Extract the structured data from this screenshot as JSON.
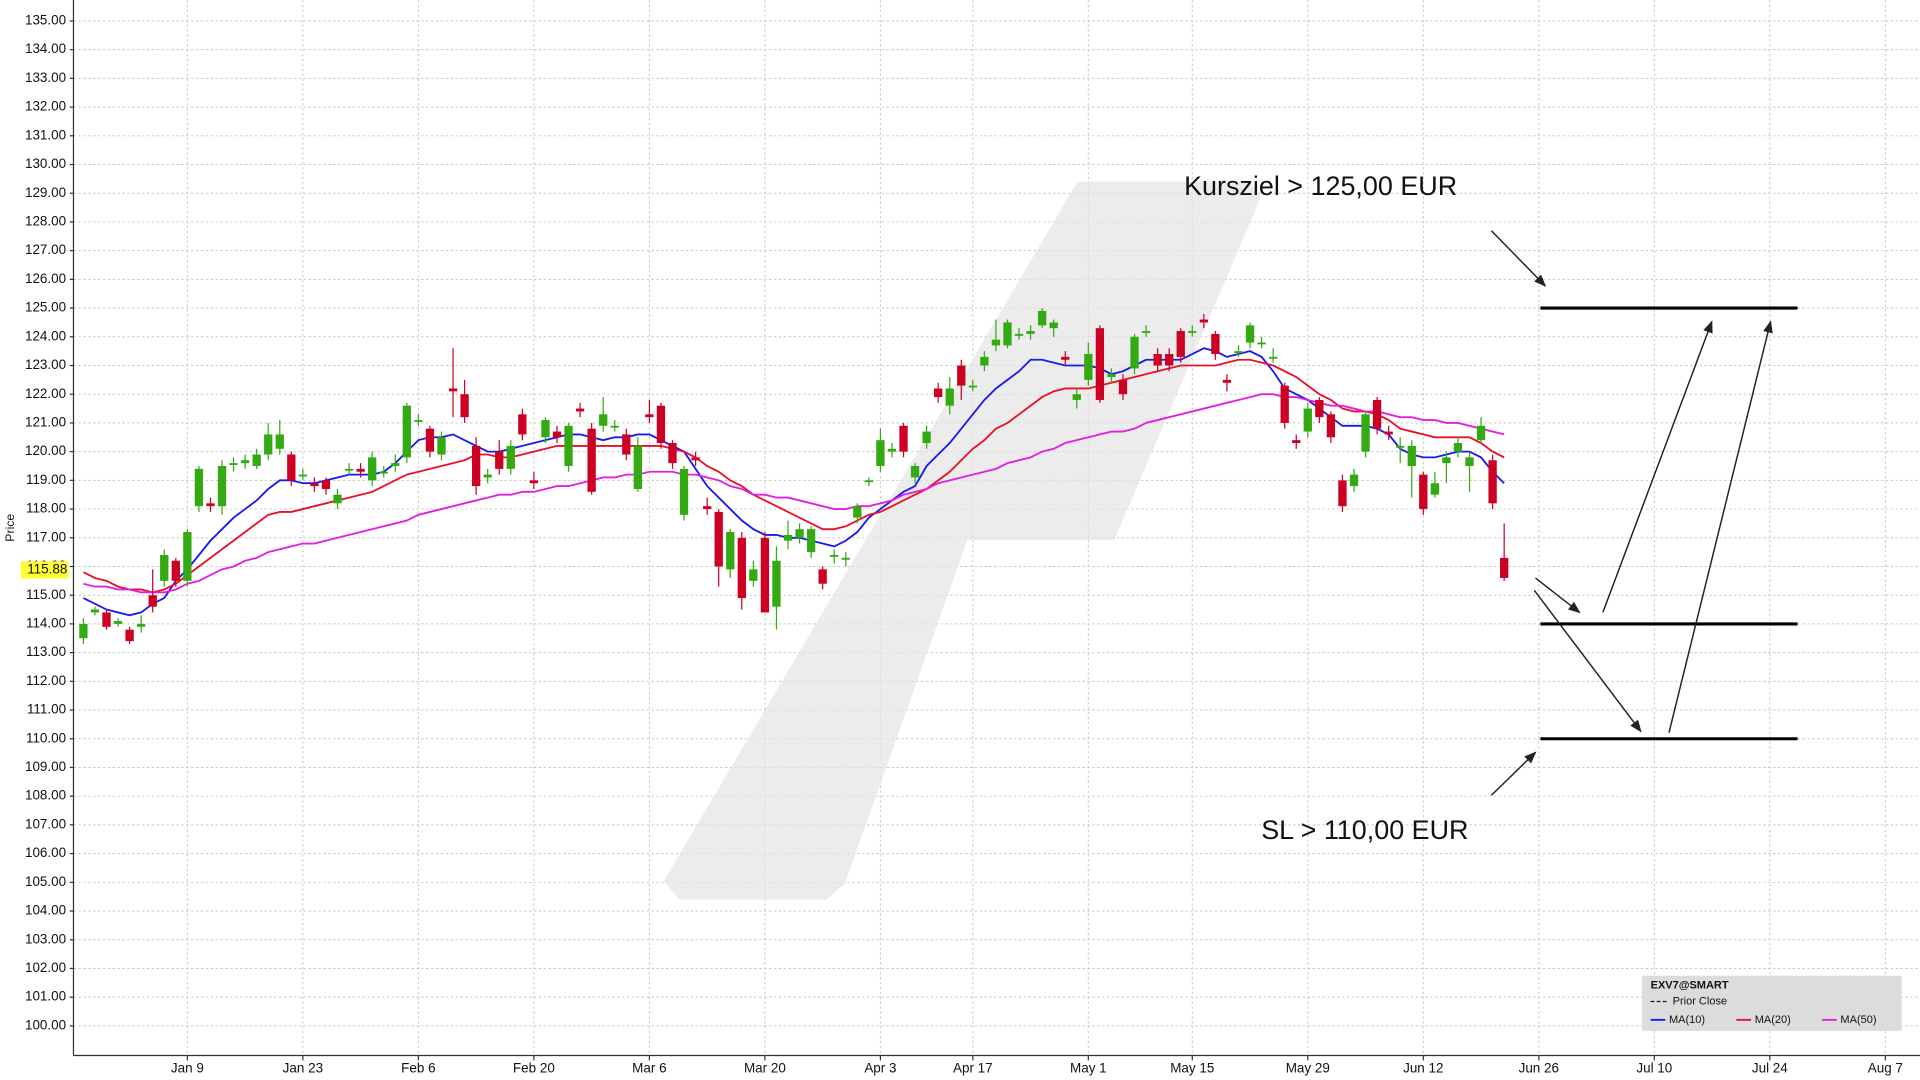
{
  "chart_data": {
    "type": "candlestick",
    "symbol": "EXV7@SMART",
    "y_label": "Price",
    "prior_close_label": "Prior Close",
    "last_price": 115.88,
    "up_color": "#33aa11",
    "down_color": "#cc0022",
    "open": [
      113.5,
      114.4,
      114.4,
      114.0,
      113.8,
      113.9,
      115.0,
      115.5,
      116.2,
      115.5,
      118.1,
      118.2,
      118.1,
      119.6,
      119.6,
      119.5,
      119.9,
      120.1,
      119.9,
      119.2,
      118.9,
      119.0,
      118.2,
      119.4,
      119.4,
      119.0,
      119.3,
      119.5,
      119.8,
      121.1,
      120.8,
      119.9,
      122.2,
      122.0,
      120.2,
      119.1,
      120.0,
      119.4,
      121.3,
      119.0,
      120.5,
      120.7,
      119.5,
      121.5,
      120.8,
      120.9,
      120.9,
      120.6,
      118.7,
      121.3,
      121.6,
      120.3,
      117.8,
      119.8,
      118.1,
      117.9,
      115.9,
      117.0,
      115.5,
      117.0,
      114.6,
      116.9,
      117.0,
      116.5,
      115.9,
      116.4,
      116.3,
      117.7,
      119.0,
      119.5,
      120.0,
      120.9,
      119.1,
      120.3,
      122.2,
      121.6,
      123.0,
      122.3,
      123.0,
      123.7,
      123.7,
      124.1,
      124.1,
      124.4,
      124.3,
      123.3,
      121.8,
      122.5,
      124.3,
      122.6,
      122.5,
      122.9,
      124.2,
      123.4,
      123.4,
      124.2,
      124.2,
      124.6,
      124.1,
      122.5,
      123.5,
      123.8,
      123.8,
      123.3,
      122.3,
      120.4,
      120.7,
      121.8,
      121.3,
      119.0,
      118.8,
      120.0,
      121.8,
      120.7,
      120.2,
      119.5,
      119.2,
      118.5,
      119.6,
      120.0,
      119.5,
      120.4,
      119.7,
      116.3
    ],
    "high": [
      114.2,
      114.6,
      114.5,
      114.2,
      113.9,
      114.3,
      115.9,
      116.6,
      116.3,
      117.3,
      119.5,
      118.4,
      119.7,
      119.8,
      119.9,
      120.1,
      121.0,
      121.1,
      120.0,
      119.4,
      119.1,
      119.1,
      118.7,
      119.6,
      119.6,
      120.0,
      119.5,
      119.9,
      121.7,
      121.3,
      120.9,
      120.7,
      123.6,
      122.5,
      120.5,
      119.4,
      120.4,
      120.4,
      121.5,
      119.3,
      121.2,
      120.9,
      121.0,
      121.7,
      121.0,
      121.9,
      121.1,
      120.8,
      120.5,
      121.8,
      121.7,
      120.4,
      119.5,
      120.0,
      118.4,
      118.0,
      117.3,
      117.2,
      116.2,
      117.2,
      116.7,
      117.6,
      117.5,
      117.4,
      116.0,
      116.6,
      116.5,
      118.2,
      119.1,
      120.8,
      120.3,
      121.0,
      119.6,
      120.9,
      122.4,
      122.6,
      123.2,
      122.5,
      123.5,
      124.6,
      124.6,
      124.3,
      124.4,
      125.0,
      124.6,
      123.5,
      122.2,
      123.8,
      124.4,
      122.9,
      122.7,
      124.1,
      124.4,
      123.6,
      123.6,
      124.3,
      124.4,
      124.8,
      124.2,
      122.7,
      123.7,
      124.5,
      124.0,
      123.6,
      122.4,
      120.6,
      121.7,
      121.9,
      121.4,
      119.2,
      119.4,
      121.4,
      121.9,
      120.9,
      120.5,
      120.4,
      119.3,
      119.3,
      120.0,
      120.5,
      120.0,
      121.2,
      119.9,
      117.5
    ],
    "low": [
      113.3,
      114.3,
      113.8,
      113.9,
      113.3,
      113.7,
      114.4,
      115.3,
      115.3,
      115.3,
      117.9,
      117.9,
      117.8,
      119.3,
      119.4,
      119.4,
      119.7,
      119.9,
      118.8,
      119.0,
      118.6,
      118.5,
      118.0,
      119.2,
      119.1,
      118.8,
      119.1,
      119.3,
      119.6,
      120.9,
      119.8,
      119.7,
      121.2,
      121.0,
      118.5,
      118.9,
      119.2,
      119.2,
      120.4,
      118.7,
      120.3,
      120.3,
      119.3,
      121.2,
      118.5,
      120.7,
      120.7,
      119.7,
      118.6,
      121.0,
      120.1,
      119.4,
      117.6,
      119.5,
      117.8,
      115.3,
      115.6,
      114.5,
      115.3,
      114.4,
      113.8,
      116.6,
      116.8,
      116.3,
      115.2,
      116.1,
      116.0,
      117.5,
      118.8,
      119.3,
      119.8,
      119.8,
      118.9,
      120.1,
      121.7,
      121.3,
      121.8,
      122.1,
      122.8,
      123.5,
      123.6,
      123.9,
      123.9,
      124.3,
      124.0,
      123.0,
      121.5,
      122.3,
      121.7,
      122.4,
      121.8,
      122.7,
      124.0,
      122.8,
      122.8,
      123.1,
      124.0,
      124.3,
      123.2,
      122.1,
      123.3,
      123.6,
      123.6,
      123.1,
      120.8,
      120.1,
      120.5,
      121.0,
      120.3,
      117.9,
      118.6,
      119.8,
      120.6,
      120.4,
      119.6,
      118.4,
      117.8,
      118.4,
      118.9,
      119.8,
      118.6,
      120.3,
      118.0,
      115.5
    ],
    "close": [
      114.0,
      114.5,
      113.9,
      114.1,
      113.4,
      114.0,
      114.6,
      116.4,
      115.5,
      117.2,
      119.4,
      118.1,
      119.5,
      119.6,
      119.7,
      119.9,
      120.6,
      120.6,
      119.0,
      119.2,
      118.8,
      118.7,
      118.5,
      119.4,
      119.3,
      119.8,
      119.3,
      119.6,
      121.6,
      121.1,
      120.0,
      120.5,
      122.1,
      121.2,
      118.8,
      119.2,
      119.4,
      120.2,
      120.6,
      118.9,
      121.1,
      120.5,
      120.9,
      121.4,
      118.6,
      121.3,
      120.9,
      119.9,
      120.2,
      121.2,
      120.3,
      119.6,
      119.4,
      119.7,
      118.0,
      116.0,
      117.2,
      114.9,
      115.9,
      114.4,
      116.2,
      117.1,
      117.3,
      117.3,
      115.4,
      116.4,
      116.3,
      118.1,
      119.0,
      120.4,
      120.1,
      120.0,
      119.5,
      120.7,
      121.9,
      122.2,
      122.3,
      122.3,
      123.3,
      123.9,
      124.5,
      124.1,
      124.2,
      124.9,
      124.5,
      123.2,
      122.0,
      123.4,
      121.8,
      122.7,
      122.0,
      124.0,
      124.2,
      123.0,
      123.0,
      123.3,
      124.2,
      124.5,
      123.4,
      122.4,
      123.5,
      124.4,
      123.8,
      123.3,
      121.0,
      120.3,
      121.5,
      121.2,
      120.5,
      118.1,
      119.2,
      121.3,
      120.8,
      120.6,
      120.2,
      120.2,
      118.0,
      118.9,
      119.8,
      120.3,
      119.8,
      120.9,
      118.2,
      115.6
    ],
    "series": [
      {
        "name": "MA(10)",
        "color": "#1a1aee",
        "values": [
          114.9,
          114.7,
          114.5,
          114.4,
          114.3,
          114.4,
          114.7,
          114.9,
          115.5,
          115.9,
          116.4,
          116.9,
          117.3,
          117.7,
          118.0,
          118.3,
          118.7,
          119.0,
          119.0,
          118.9,
          118.9,
          119.0,
          119.1,
          119.2,
          119.2,
          119.2,
          119.3,
          119.6,
          120.0,
          120.4,
          120.5,
          120.5,
          120.6,
          120.4,
          120.2,
          120.0,
          120.0,
          120.1,
          120.2,
          120.3,
          120.4,
          120.5,
          120.6,
          120.6,
          120.5,
          120.4,
          120.5,
          120.5,
          120.6,
          120.6,
          120.4,
          120.2,
          120.0,
          119.4,
          118.8,
          118.4,
          118.0,
          117.6,
          117.3,
          117.1,
          117.1,
          117.0,
          117.0,
          116.9,
          116.8,
          116.7,
          116.9,
          117.2,
          117.7,
          118.0,
          118.3,
          118.6,
          118.8,
          119.5,
          119.9,
          120.3,
          120.8,
          121.3,
          121.8,
          122.2,
          122.5,
          122.8,
          123.2,
          123.2,
          123.1,
          123.0,
          123.0,
          123.0,
          122.9,
          122.7,
          122.8,
          123.0,
          123.2,
          123.2,
          123.2,
          123.2,
          123.4,
          123.6,
          123.5,
          123.3,
          123.4,
          123.5,
          123.3,
          122.8,
          122.2,
          122.0,
          121.8,
          121.5,
          121.2,
          120.9,
          120.9,
          120.9,
          120.8,
          120.6,
          120.1,
          119.9,
          119.8,
          119.8,
          119.9,
          120.0,
          120.0,
          119.8,
          119.3,
          118.9
        ]
      },
      {
        "name": "MA(20)",
        "color": "#e8102a",
        "values": [
          115.8,
          115.6,
          115.5,
          115.3,
          115.2,
          115.2,
          115.1,
          115.2,
          115.4,
          115.7,
          116.0,
          116.3,
          116.6,
          116.9,
          117.2,
          117.5,
          117.8,
          117.9,
          117.9,
          118.0,
          118.1,
          118.2,
          118.3,
          118.4,
          118.5,
          118.6,
          118.8,
          119.0,
          119.2,
          119.3,
          119.4,
          119.5,
          119.6,
          119.7,
          119.9,
          119.9,
          119.8,
          119.8,
          119.9,
          120.0,
          120.1,
          120.2,
          120.2,
          120.2,
          120.2,
          120.2,
          120.2,
          120.2,
          120.2,
          120.2,
          120.2,
          120.1,
          120.0,
          119.8,
          119.5,
          119.3,
          119.0,
          118.8,
          118.5,
          118.3,
          118.1,
          117.9,
          117.7,
          117.5,
          117.3,
          117.3,
          117.4,
          117.6,
          117.8,
          117.9,
          118.1,
          118.3,
          118.5,
          118.7,
          119.0,
          119.3,
          119.7,
          120.1,
          120.4,
          120.8,
          121.0,
          121.3,
          121.6,
          121.9,
          122.1,
          122.2,
          122.2,
          122.2,
          122.3,
          122.4,
          122.5,
          122.6,
          122.7,
          122.8,
          122.9,
          123.0,
          123.0,
          123.0,
          123.0,
          123.1,
          123.2,
          123.2,
          123.1,
          123.0,
          122.8,
          122.6,
          122.3,
          122.0,
          121.8,
          121.5,
          121.4,
          121.4,
          121.3,
          121.1,
          120.8,
          120.7,
          120.6,
          120.5,
          120.5,
          120.5,
          120.5,
          120.3,
          120.0,
          119.8
        ]
      },
      {
        "name": "MA(50)",
        "color": "#e020e0",
        "values": [
          115.4,
          115.3,
          115.3,
          115.2,
          115.2,
          115.1,
          115.1,
          115.1,
          115.2,
          115.4,
          115.5,
          115.7,
          115.9,
          116.0,
          116.2,
          116.3,
          116.5,
          116.6,
          116.7,
          116.8,
          116.8,
          116.9,
          117.0,
          117.1,
          117.2,
          117.3,
          117.4,
          117.5,
          117.6,
          117.8,
          117.9,
          118.0,
          118.1,
          118.2,
          118.3,
          118.4,
          118.5,
          118.5,
          118.6,
          118.6,
          118.7,
          118.8,
          118.8,
          118.9,
          119.0,
          119.1,
          119.1,
          119.2,
          119.2,
          119.3,
          119.3,
          119.3,
          119.2,
          119.2,
          119.1,
          119.0,
          118.8,
          118.7,
          118.5,
          118.5,
          118.4,
          118.4,
          118.3,
          118.2,
          118.1,
          118.0,
          118.0,
          118.1,
          118.1,
          118.2,
          118.3,
          118.5,
          118.6,
          118.7,
          118.9,
          119.0,
          119.1,
          119.2,
          119.3,
          119.4,
          119.6,
          119.7,
          119.8,
          120.0,
          120.1,
          120.3,
          120.4,
          120.5,
          120.6,
          120.7,
          120.7,
          120.8,
          121.0,
          121.1,
          121.2,
          121.3,
          121.4,
          121.5,
          121.6,
          121.7,
          121.8,
          121.9,
          122.0,
          122.0,
          121.9,
          121.9,
          121.8,
          121.7,
          121.6,
          121.6,
          121.5,
          121.4,
          121.4,
          121.3,
          121.2,
          121.2,
          121.1,
          121.1,
          121.0,
          121.0,
          120.9,
          120.8,
          120.7,
          120.6
        ]
      }
    ],
    "xlim": [
      -0.86,
      159
    ],
    "xticks": [
      {
        "value": 9,
        "label": "Jan 9"
      },
      {
        "value": 19,
        "label": "Jan 23"
      },
      {
        "value": 29,
        "label": "Feb 6"
      },
      {
        "value": 39,
        "label": "Feb 20"
      },
      {
        "value": 49,
        "label": "Mar 6"
      },
      {
        "value": 59,
        "label": "Mar 20"
      },
      {
        "value": 69,
        "label": "Apr 3"
      },
      {
        "value": 77,
        "label": "Apr 17"
      },
      {
        "value": 87,
        "label": "May 1"
      },
      {
        "value": 96,
        "label": "May 15"
      },
      {
        "value": 106,
        "label": "May 29"
      },
      {
        "value": 116,
        "label": "Jun 12"
      },
      {
        "value": 126,
        "label": "Jun 26"
      },
      {
        "value": 136,
        "label": "Jul 10"
      },
      {
        "value": 146,
        "label": "Jul 24"
      },
      {
        "value": 156,
        "label": "Aug 7"
      }
    ],
    "ylim": [
      98.97,
      135.73
    ],
    "yticks": [
      {
        "value": 100,
        "label": "100.00"
      },
      {
        "value": 101,
        "label": "101.00"
      },
      {
        "value": 102,
        "label": "102.00"
      },
      {
        "value": 103,
        "label": "103.00"
      },
      {
        "value": 104,
        "label": "104.00"
      },
      {
        "value": 105,
        "label": "105.00"
      },
      {
        "value": 106,
        "label": "106.00"
      },
      {
        "value": 107,
        "label": "107.00"
      },
      {
        "value": 108,
        "label": "108.00"
      },
      {
        "value": 109,
        "label": "109.00"
      },
      {
        "value": 110,
        "label": "110.00"
      },
      {
        "value": 111,
        "label": "111.00"
      },
      {
        "value": 112,
        "label": "112.00"
      },
      {
        "value": 113,
        "label": "113.00"
      },
      {
        "value": 114,
        "label": "114.00"
      },
      {
        "value": 115,
        "label": "115.00"
      },
      {
        "value": 116,
        "label": "116.00"
      },
      {
        "value": 117,
        "label": "117.00"
      },
      {
        "value": 118,
        "label": "118.00"
      },
      {
        "value": 119,
        "label": "119.00"
      },
      {
        "value": 120,
        "label": "120.00"
      },
      {
        "value": 121,
        "label": "121.00"
      },
      {
        "value": 122,
        "label": "122.00"
      },
      {
        "value": 123,
        "label": "123.00"
      },
      {
        "value": 124,
        "label": "124.00"
      },
      {
        "value": 125,
        "label": "125.00"
      },
      {
        "value": 126,
        "label": "126.00"
      },
      {
        "value": 127,
        "label": "127.00"
      },
      {
        "value": 128,
        "label": "128.00"
      },
      {
        "value": 129,
        "label": "129.00"
      },
      {
        "value": 130,
        "label": "130.00"
      },
      {
        "value": 131,
        "label": "131.00"
      },
      {
        "value": 132,
        "label": "132.00"
      },
      {
        "value": 133,
        "label": "133.00"
      },
      {
        "value": 134,
        "label": "134.00"
      },
      {
        "value": 135,
        "label": "135.00"
      }
    ],
    "grid": true,
    "levels": [
      125,
      114,
      110
    ],
    "annotations": [
      {
        "text": "Kursziel > 125,00 EUR"
      },
      {
        "text": "SL > 110,00 EUR"
      }
    ]
  }
}
